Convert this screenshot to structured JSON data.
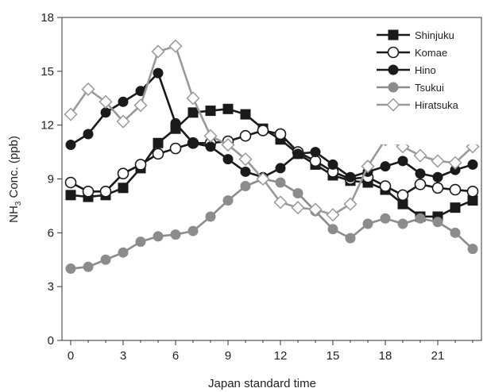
{
  "chart_data": {
    "type": "line",
    "title": "",
    "xlabel": "Japan standard time",
    "ylabel_prefix": "NH",
    "ylabel_sub": "3",
    "ylabel_suffix": " Conc. (ppb)",
    "xlim": [
      -0.5,
      23.5
    ],
    "ylim": [
      0,
      18
    ],
    "xticks": [
      0,
      3,
      6,
      9,
      12,
      15,
      18,
      21
    ],
    "yticks": [
      0,
      3,
      6,
      9,
      12,
      15,
      18
    ],
    "grid": false,
    "legend_position": "top-right",
    "x": [
      0,
      1,
      2,
      3,
      4,
      5,
      6,
      7,
      8,
      9,
      10,
      11,
      12,
      13,
      14,
      15,
      16,
      17,
      18,
      19,
      20,
      21,
      22,
      23
    ],
    "series": [
      {
        "name": "Shinjuku",
        "marker": "square",
        "color": "#1a1a1a",
        "fill": "#1a1a1a",
        "values": [
          8.1,
          8.0,
          8.1,
          8.5,
          9.6,
          11.0,
          11.8,
          12.7,
          12.8,
          12.9,
          12.6,
          11.8,
          11.2,
          10.4,
          9.8,
          9.2,
          8.9,
          8.8,
          8.4,
          7.6,
          6.9,
          6.9,
          7.4,
          7.8
        ]
      },
      {
        "name": "Komae",
        "marker": "circle-open",
        "color": "#1a1a1a",
        "fill": "#ffffff",
        "values": [
          8.8,
          8.3,
          8.3,
          9.3,
          9.8,
          10.4,
          10.7,
          11.0,
          11.0,
          11.1,
          11.4,
          11.7,
          11.5,
          10.5,
          10.0,
          9.4,
          9.0,
          9.1,
          8.6,
          8.1,
          8.7,
          8.5,
          8.4,
          8.3
        ]
      },
      {
        "name": "Hino",
        "marker": "circle",
        "color": "#1a1a1a",
        "fill": "#1a1a1a",
        "values": [
          10.9,
          11.5,
          12.7,
          13.3,
          13.9,
          14.9,
          12.1,
          11.0,
          10.8,
          10.1,
          9.4,
          9.1,
          9.6,
          10.4,
          10.5,
          9.8,
          9.1,
          9.4,
          9.7,
          10.0,
          9.3,
          9.1,
          9.5,
          9.8
        ]
      },
      {
        "name": "Tsukui",
        "marker": "circle",
        "color": "#8c8c8c",
        "fill": "#8c8c8c",
        "values": [
          4.0,
          4.1,
          4.5,
          4.9,
          5.5,
          5.8,
          5.9,
          6.1,
          6.9,
          7.8,
          8.6,
          9.0,
          8.8,
          8.2,
          7.2,
          6.2,
          5.7,
          6.5,
          6.8,
          6.5,
          6.8,
          6.6,
          6.0,
          5.1
        ]
      },
      {
        "name": "Hiratsuka",
        "marker": "diamond-open",
        "color": "#999999",
        "fill": "#ffffff",
        "values": [
          12.6,
          14.0,
          13.3,
          12.2,
          13.1,
          16.1,
          16.4,
          13.5,
          11.4,
          10.9,
          10.1,
          9.0,
          7.7,
          7.4,
          7.3,
          7.0,
          7.6,
          9.7,
          11.2,
          10.8,
          10.3,
          10.0,
          9.9,
          10.8
        ]
      }
    ]
  }
}
